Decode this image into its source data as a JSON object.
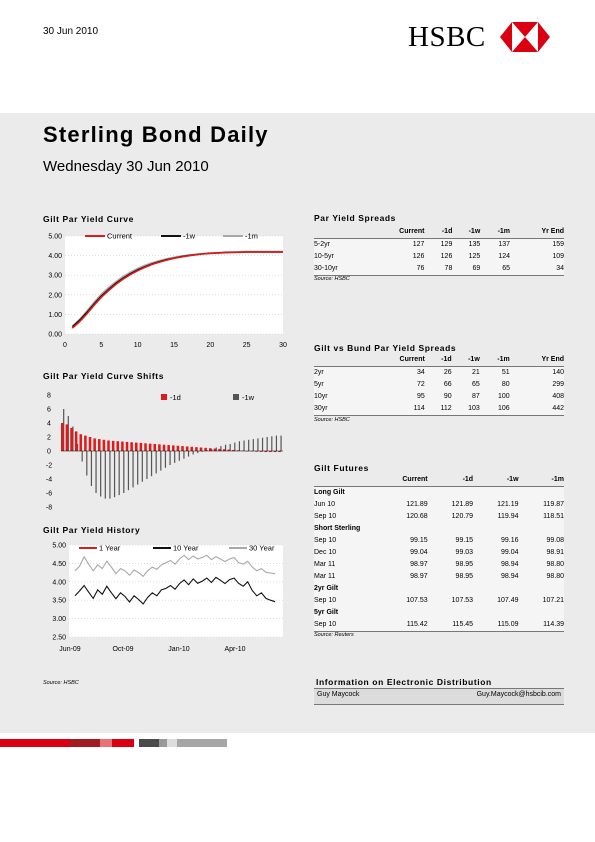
{
  "header": {
    "date": "30 Jun 2010",
    "logo_text": "HSBC"
  },
  "title": "Sterling Bond Daily",
  "subtitle": "Wednesday 30 Jun 2010",
  "left_source": "Source: HSBC",
  "colors": {
    "red": "#e01a1a",
    "black": "#111111",
    "grey": "#a8a8a8",
    "band": "#ebebeb"
  },
  "chart_data": [
    {
      "type": "line",
      "title": "Gilt Par Yield Curve",
      "x": [
        1,
        2,
        3,
        4,
        5,
        6,
        7,
        8,
        9,
        10,
        11,
        12,
        13,
        14,
        15,
        16,
        17,
        18,
        19,
        20,
        21,
        22,
        23,
        24,
        25,
        26,
        27,
        28,
        29,
        30
      ],
      "series": [
        {
          "name": "Current",
          "values": [
            0.3,
            0.62,
            1.02,
            1.47,
            1.87,
            2.22,
            2.53,
            2.8,
            3.03,
            3.23,
            3.4,
            3.55,
            3.67,
            3.77,
            3.86,
            3.93,
            3.99,
            4.04,
            4.08,
            4.11,
            4.13,
            4.15,
            4.16,
            4.17,
            4.18,
            4.18,
            4.18,
            4.18,
            4.18,
            4.18
          ]
        },
        {
          "name": "-1w",
          "values": [
            0.38,
            0.7,
            1.1,
            1.54,
            1.94,
            2.28,
            2.59,
            2.85,
            3.08,
            3.28,
            3.44,
            3.58,
            3.7,
            3.8,
            3.88,
            3.95,
            4.01,
            4.05,
            4.09,
            4.12,
            4.14,
            4.16,
            4.17,
            4.18,
            4.19,
            4.19,
            4.19,
            4.19,
            4.19,
            4.19
          ]
        },
        {
          "name": "-1m",
          "values": [
            0.4,
            0.75,
            1.18,
            1.63,
            2.04,
            2.38,
            2.68,
            2.94,
            3.16,
            3.35,
            3.51,
            3.64,
            3.75,
            3.84,
            3.92,
            3.98,
            4.03,
            4.07,
            4.11,
            4.14,
            4.16,
            4.18,
            4.19,
            4.2,
            4.21,
            4.21,
            4.21,
            4.21,
            4.21,
            4.21
          ]
        }
      ],
      "xticks": [
        "0",
        "5",
        "10",
        "15",
        "20",
        "25",
        "30"
      ],
      "yticks": [
        "0.00",
        "1.00",
        "2.00",
        "3.00",
        "4.00",
        "5.00"
      ],
      "xlim": [
        0,
        30
      ],
      "ylim": [
        0,
        5
      ]
    },
    {
      "type": "bar",
      "title": "Gilt Par Yield Curve Shifts",
      "series": [
        {
          "name": "-1d",
          "values": [
            4.0,
            3.8,
            3.3,
            2.8,
            2.4,
            2.2,
            2.0,
            1.8,
            1.7,
            1.6,
            1.5,
            1.45,
            1.4,
            1.35,
            1.3,
            1.25,
            1.2,
            1.15,
            1.1,
            1.05,
            1.0,
            0.95,
            0.9,
            0.85,
            0.8,
            0.75,
            0.7,
            0.65,
            0.6,
            0.55,
            0.5,
            0.45,
            0.4,
            0.35,
            0.3,
            0.25,
            0.2,
            0.15,
            0.1,
            0.05,
            0.0,
            -0.05,
            -0.1,
            -0.12,
            -0.15,
            -0.15,
            -0.15,
            -0.15
          ]
        },
        {
          "name": "-1w",
          "values": [
            6.0,
            5.0,
            3.5,
            1.0,
            -1.5,
            -3.5,
            -5.0,
            -6.0,
            -6.5,
            -6.8,
            -6.8,
            -6.6,
            -6.3,
            -6.0,
            -5.6,
            -5.2,
            -4.8,
            -4.4,
            -4.0,
            -3.6,
            -3.2,
            -2.8,
            -2.4,
            -2.0,
            -1.7,
            -1.4,
            -1.1,
            -0.8,
            -0.5,
            -0.3,
            -0.1,
            0.1,
            0.3,
            0.5,
            0.7,
            0.9,
            1.0,
            1.2,
            1.4,
            1.5,
            1.6,
            1.7,
            1.8,
            1.9,
            2.0,
            2.1,
            2.2,
            2.2
          ]
        }
      ],
      "yticks": [
        "8",
        "6",
        "4",
        "2",
        "0",
        "-2",
        "-4",
        "-6",
        "-8"
      ],
      "ylim": [
        -8,
        8
      ]
    },
    {
      "type": "line",
      "title": "Gilt Par Yield History",
      "xticks": [
        "Jun-09",
        "Oct-09",
        "Jan-10",
        "Apr-10"
      ],
      "yticks": [
        "2.50",
        "3.00",
        "3.50",
        "4.00",
        "4.50",
        "5.00"
      ],
      "ylim": [
        2.5,
        5.0
      ],
      "series": [
        {
          "name": "1 Year",
          "values": []
        },
        {
          "name": "10 Year",
          "values": [
            3.62,
            3.75,
            3.9,
            3.72,
            3.55,
            3.78,
            3.66,
            3.88,
            3.7,
            3.54,
            3.7,
            3.6,
            3.45,
            3.62,
            3.52,
            3.4,
            3.58,
            3.7,
            3.62,
            3.78,
            3.82,
            3.9,
            3.8,
            3.95,
            4.05,
            3.92,
            4.08,
            3.96,
            4.02,
            4.1,
            3.98,
            4.12,
            4.04,
            3.95,
            4.06,
            4.1,
            3.96,
            3.88,
            4.0,
            3.76,
            3.62,
            3.7,
            3.55,
            3.5,
            3.46
          ]
        },
        {
          "name": "30 Year",
          "values": [
            4.3,
            4.42,
            4.68,
            4.48,
            4.3,
            4.46,
            4.36,
            4.56,
            4.4,
            4.22,
            4.36,
            4.3,
            4.18,
            4.32,
            4.25,
            4.15,
            4.3,
            4.4,
            4.34,
            4.46,
            4.52,
            4.58,
            4.48,
            4.62,
            4.72,
            4.6,
            4.7,
            4.62,
            4.66,
            4.72,
            4.6,
            4.68,
            4.62,
            4.55,
            4.62,
            4.66,
            4.52,
            4.48,
            4.56,
            4.4,
            4.3,
            4.36,
            4.26,
            4.24,
            4.22
          ]
        }
      ]
    }
  ],
  "par_yield_spreads": {
    "title": "Par Yield Spreads",
    "columns": [
      "Current",
      "-1d",
      "-1w",
      "-1m",
      "Yr End"
    ],
    "rows": [
      {
        "label": "5-2yr",
        "values": [
          "127",
          "129",
          "135",
          "137",
          "159"
        ]
      },
      {
        "label": "10-5yr",
        "values": [
          "126",
          "126",
          "125",
          "124",
          "109"
        ]
      },
      {
        "label": "30-10yr",
        "values": [
          "76",
          "78",
          "69",
          "65",
          "34"
        ]
      }
    ],
    "source": "Source: HSBC"
  },
  "gilt_bund": {
    "title": "Gilt vs Bund Par Yield Spreads",
    "columns": [
      "Current",
      "-1d",
      "-1w",
      "-1m",
      "Yr End"
    ],
    "rows": [
      {
        "label": "2yr",
        "values": [
          "34",
          "26",
          "21",
          "51",
          "140"
        ]
      },
      {
        "label": "5yr",
        "values": [
          "72",
          "66",
          "65",
          "80",
          "299"
        ]
      },
      {
        "label": "10yr",
        "values": [
          "95",
          "90",
          "87",
          "100",
          "408"
        ]
      },
      {
        "label": "30yr",
        "values": [
          "114",
          "112",
          "103",
          "106",
          "442"
        ]
      }
    ],
    "source": "Source: HSBC"
  },
  "gilt_futures": {
    "title": "Gilt Futures",
    "columns": [
      "Current",
      "-1d",
      "-1w",
      "-1m"
    ],
    "groups": [
      {
        "name": "Long Gilt",
        "rows": [
          {
            "label": "Jun 10",
            "values": [
              "121.89",
              "121.89",
              "121.19",
              "119.87"
            ]
          },
          {
            "label": "Sep 10",
            "values": [
              "120.68",
              "120.79",
              "119.94",
              "118.51"
            ]
          }
        ]
      },
      {
        "name": "Short Sterling",
        "rows": [
          {
            "label": "Sep 10",
            "values": [
              "99.15",
              "99.15",
              "99.16",
              "99.08"
            ]
          },
          {
            "label": "Dec 10",
            "values": [
              "99.04",
              "99.03",
              "99.04",
              "98.91"
            ]
          },
          {
            "label": "Mar 11",
            "values": [
              "98.97",
              "98.95",
              "98.94",
              "98.80"
            ]
          },
          {
            "label": "Mar 11",
            "values": [
              "98.97",
              "98.95",
              "98.94",
              "98.80"
            ]
          }
        ]
      },
      {
        "name": "2yr Gilt",
        "rows": [
          {
            "label": "Sep 10",
            "values": [
              "107.53",
              "107.53",
              "107.49",
              "107.21"
            ]
          }
        ]
      },
      {
        "name": "5yr Gilt",
        "rows": [
          {
            "label": "Sep 10",
            "values": [
              "115.42",
              "115.45",
              "115.09",
              "114.39"
            ]
          }
        ]
      }
    ],
    "source": "Source: Reuters"
  },
  "info": {
    "title": "Information on Electronic Distribution",
    "name": "Guy Maycock",
    "email": "Guy.Maycock@hsbcib.com"
  }
}
